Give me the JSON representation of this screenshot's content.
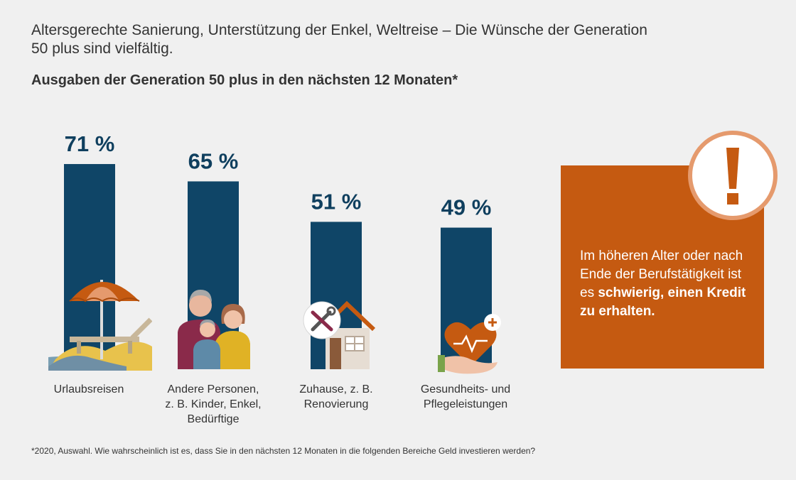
{
  "intro": "Altersgerechte Sanierung, Unterstützung der Enkel, Weltreise – Die Wünsche der Generation 50 plus sind vielfältig.",
  "subtitle": "Ausgaben der Generation 50 plus in den nächsten 12 Monaten*",
  "chart_data": {
    "type": "bar",
    "categories": [
      "Urlaubsreisen",
      "Andere Personen, z. B. Kinder, Enkel, Bedürftige",
      "Zuhause, z. B. Renovierung",
      "Gesundheits- und Pflegeleistungen"
    ],
    "category_lines": [
      [
        "Urlaubsreisen"
      ],
      [
        "Andere Personen,",
        "z. B. Kinder, Enkel,",
        "Bedürftige"
      ],
      [
        "Zuhause, z. B.",
        "Renovierung"
      ],
      [
        "Gesundheits- und",
        "Pflegeleistungen"
      ]
    ],
    "values": [
      71,
      65,
      51,
      49
    ],
    "value_labels": [
      "71 %",
      "65 %",
      "51 %",
      "49 %"
    ],
    "unit": "%",
    "ylim": [
      0,
      100
    ],
    "grid": false,
    "bar_color": "#0f4567"
  },
  "callout": {
    "icon": "exclamation-icon",
    "text_plain": "Im höheren Alter oder nach Ende der Berufstätigkeit ist es",
    "text_bold": "schwierig, einen Kredit zu erhalten.",
    "color": "#c55a11"
  },
  "icons": [
    "beach-umbrella-icon",
    "family-icon",
    "house-tools-icon",
    "heart-hand-icon"
  ],
  "footnote": "*2020, Auswahl. Wie wahrscheinlich ist es, dass Sie in den nächsten 12 Monaten in die folgenden Bereiche Geld investieren werden?"
}
